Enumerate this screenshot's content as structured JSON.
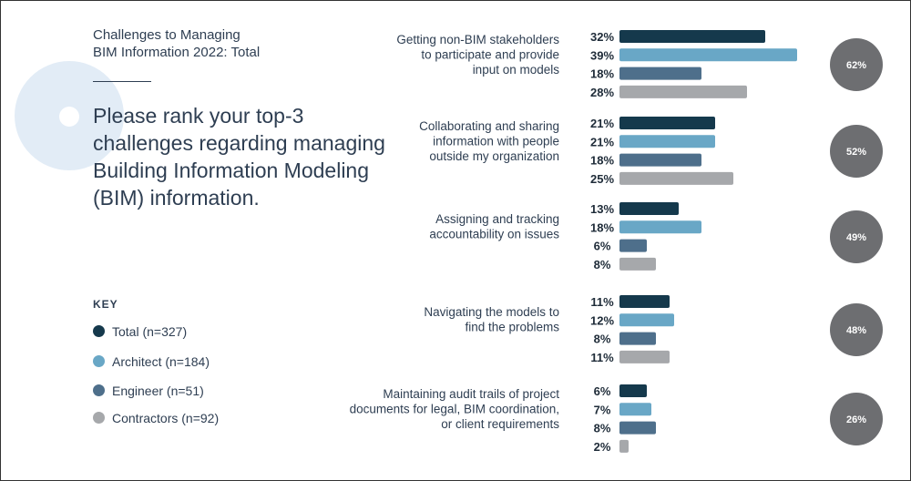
{
  "legend": {
    "title": "KEY"
  },
  "chart_data": {
    "type": "bar",
    "orientation": "horizontal",
    "title": "Challenges to Managing\nBIM Information 2022: Total",
    "question": "Please rank your top-3 challenges regarding managing Building Information Modeling (BIM) information.",
    "categories": [
      "Getting non-BIM stakeholders\nto participate and provide\ninput on models",
      "Collaborating and sharing\ninformation with people\noutside my organization",
      "Assigning and tracking\naccountability on issues",
      "Navigating the models to\nfind the problems",
      "Maintaining audit trails of project\ndocuments for legal, BIM coordination,\nor client requirements"
    ],
    "series": [
      {
        "name": "Total (n=327)",
        "color": "#15394c",
        "values": [
          32,
          21,
          13,
          11,
          6
        ]
      },
      {
        "name": "Architect (n=184)",
        "color": "#69a7c6",
        "values": [
          39,
          21,
          18,
          12,
          7
        ]
      },
      {
        "name": "Engineer (n=51)",
        "color": "#4e6f8b",
        "values": [
          18,
          18,
          6,
          8,
          8
        ]
      },
      {
        "name": "Contractors (n=92)",
        "color": "#a6a8ab",
        "values": [
          28,
          25,
          8,
          11,
          2
        ]
      }
    ],
    "value_suffix": "%",
    "summary_values": [
      62,
      52,
      49,
      48,
      26
    ],
    "summary_color": "#6d6e71"
  }
}
